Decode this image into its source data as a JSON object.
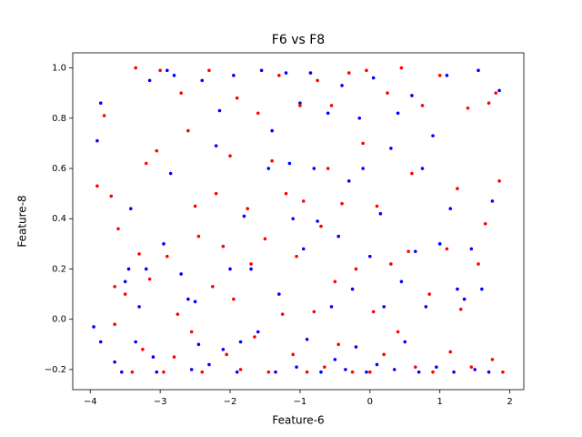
{
  "chart_data": {
    "type": "scatter",
    "title": "F6 vs F8",
    "x_label": "Feature-6",
    "y_label": "Feature-8",
    "xlim": [
      -4.25,
      2.2
    ],
    "ylim": [
      -0.28,
      1.06
    ],
    "xticks": [
      {
        "value": -4,
        "label": "−4"
      },
      {
        "value": -3,
        "label": "−3"
      },
      {
        "value": -2,
        "label": "−2"
      },
      {
        "value": -1,
        "label": "−1"
      },
      0,
      1,
      2
    ],
    "yticks": [
      {
        "value": -0.2,
        "label": "−0.2"
      },
      {
        "value": 0,
        "label": "0.0"
      },
      {
        "value": 0.2,
        "label": "0.2"
      },
      {
        "value": 0.4,
        "label": "0.4"
      },
      {
        "value": 0.6,
        "label": "0.6"
      },
      {
        "value": 0.8,
        "label": "0.8"
      },
      {
        "value": 1,
        "label": "1.0"
      }
    ],
    "series": [
      {
        "color": "#0000ff",
        "x": [
          -3.95,
          -3.9,
          -3.85,
          -3.85,
          -3.65,
          -3.55,
          -3.5,
          -3.45,
          -3.42,
          -3.35,
          -3.3,
          -3.2,
          -3.15,
          -3.1,
          -3.05,
          -2.95,
          -2.9,
          -2.85,
          -2.8,
          -2.7,
          -2.6,
          -2.55,
          -2.5,
          -2.45,
          -2.4,
          -2.3,
          -2.2,
          -2.15,
          -2.1,
          -2.0,
          -1.95,
          -1.9,
          -1.85,
          -1.8,
          -1.7,
          -1.6,
          -1.55,
          -1.45,
          -1.4,
          -1.35,
          -1.3,
          -1.2,
          -1.15,
          -1.1,
          -1.05,
          -1.0,
          -0.95,
          -0.9,
          -0.85,
          -0.8,
          -0.75,
          -0.7,
          -0.6,
          -0.55,
          -0.5,
          -0.45,
          -0.4,
          -0.35,
          -0.3,
          -0.25,
          -0.2,
          -0.15,
          -0.1,
          -0.05,
          0.0,
          0.05,
          0.1,
          0.15,
          0.2,
          0.3,
          0.35,
          0.4,
          0.45,
          0.5,
          0.6,
          0.65,
          0.7,
          0.75,
          0.8,
          0.9,
          0.95,
          1.0,
          1.1,
          1.15,
          1.2,
          1.25,
          1.35,
          1.45,
          1.5,
          1.55,
          1.6,
          1.7,
          1.75,
          1.85
        ],
        "values": [
          -0.03,
          0.71,
          0.86,
          -0.09,
          -0.17,
          -0.21,
          0.15,
          0.2,
          0.44,
          -0.09,
          0.05,
          0.2,
          0.95,
          -0.15,
          -0.21,
          0.3,
          0.99,
          0.58,
          0.97,
          0.18,
          0.08,
          -0.2,
          0.07,
          -0.1,
          0.95,
          -0.18,
          0.69,
          0.83,
          -0.12,
          0.2,
          0.97,
          -0.21,
          -0.09,
          0.41,
          0.2,
          -0.05,
          0.99,
          0.6,
          0.75,
          -0.21,
          0.1,
          0.98,
          0.62,
          0.4,
          -0.19,
          0.86,
          0.28,
          -0.08,
          0.98,
          0.6,
          0.39,
          -0.21,
          0.82,
          0.05,
          -0.16,
          0.33,
          0.93,
          -0.2,
          0.55,
          0.12,
          -0.11,
          0.8,
          0.6,
          -0.21,
          0.25,
          0.96,
          -0.18,
          0.42,
          0.05,
          0.68,
          -0.2,
          0.82,
          0.15,
          -0.09,
          0.89,
          0.27,
          -0.21,
          0.6,
          0.05,
          0.73,
          -0.19,
          0.3,
          0.97,
          0.44,
          -0.21,
          0.12,
          0.08,
          0.28,
          -0.2,
          0.99,
          0.12,
          -0.21,
          0.47,
          0.91
        ]
      },
      {
        "color": "#ff0000",
        "x": [
          -3.8,
          -3.9,
          -3.7,
          -3.65,
          -3.65,
          -3.6,
          -3.5,
          -3.4,
          -3.35,
          -3.3,
          -3.25,
          -3.2,
          -3.15,
          -3.05,
          -3.0,
          -2.95,
          -2.9,
          -2.8,
          -2.75,
          -2.7,
          -2.6,
          -2.55,
          -2.5,
          -2.45,
          -2.4,
          -2.3,
          -2.25,
          -2.2,
          -2.1,
          -2.05,
          -2.0,
          -1.95,
          -1.9,
          -1.85,
          -1.75,
          -1.7,
          -1.65,
          -1.6,
          -1.5,
          -1.45,
          -1.4,
          -1.3,
          -1.25,
          -1.2,
          -1.1,
          -1.05,
          -1.0,
          -0.95,
          -0.9,
          -0.8,
          -0.75,
          -0.7,
          -0.65,
          -0.6,
          -0.55,
          -0.5,
          -0.45,
          -0.4,
          -0.3,
          -0.25,
          -0.2,
          -0.1,
          -0.05,
          0.0,
          0.05,
          0.1,
          0.2,
          0.25,
          0.3,
          0.4,
          0.45,
          0.55,
          0.6,
          0.65,
          0.75,
          0.85,
          0.9,
          1.0,
          1.1,
          1.15,
          1.25,
          1.3,
          1.4,
          1.45,
          1.55,
          1.65,
          1.7,
          1.75,
          1.8,
          1.85,
          1.9
        ],
        "values": [
          0.81,
          0.53,
          0.49,
          0.13,
          -0.02,
          0.36,
          0.1,
          -0.21,
          1.0,
          0.26,
          -0.12,
          0.62,
          0.16,
          0.67,
          0.99,
          -0.21,
          0.25,
          -0.15,
          0.02,
          0.9,
          0.75,
          -0.05,
          0.45,
          0.33,
          -0.21,
          0.99,
          0.13,
          0.5,
          0.29,
          -0.14,
          0.65,
          0.08,
          0.88,
          -0.2,
          0.44,
          0.22,
          -0.07,
          0.82,
          0.32,
          -0.21,
          0.63,
          0.97,
          0.02,
          0.5,
          -0.14,
          0.25,
          0.85,
          0.47,
          -0.21,
          0.03,
          0.95,
          0.37,
          -0.19,
          0.6,
          0.85,
          0.15,
          -0.1,
          0.46,
          0.98,
          -0.21,
          0.2,
          0.7,
          0.99,
          -0.21,
          0.03,
          0.45,
          -0.14,
          0.9,
          0.22,
          -0.05,
          1.0,
          0.27,
          0.58,
          -0.19,
          0.85,
          0.1,
          -0.21,
          0.97,
          0.28,
          -0.13,
          0.52,
          0.04,
          0.84,
          -0.19,
          0.22,
          0.38,
          0.86,
          -0.16,
          0.9,
          0.55,
          -0.21
        ]
      }
    ]
  }
}
